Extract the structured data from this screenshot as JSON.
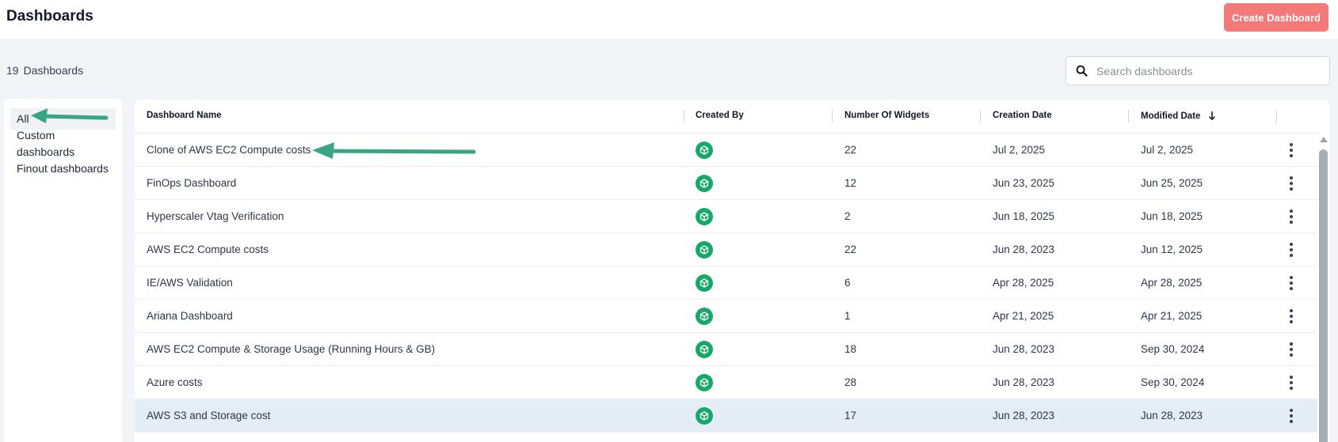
{
  "header": {
    "title": "Dashboards",
    "create_button": "Create Dashboard"
  },
  "summary": {
    "count": "19",
    "label": "Dashboards"
  },
  "search": {
    "placeholder": "Search dashboards",
    "value": ""
  },
  "sidebar": {
    "items": [
      {
        "label": "All",
        "active": true
      },
      {
        "label": "Custom dashboards",
        "active": false
      },
      {
        "label": "Finout dashboards",
        "active": false
      }
    ]
  },
  "table": {
    "columns": {
      "name": "Dashboard Name",
      "created_by": "Created By",
      "widgets": "Number Of Widgets",
      "creation_date": "Creation Date",
      "modified_date": "Modified Date"
    },
    "sort": {
      "column": "Modified Date",
      "direction": "descending",
      "icon": "arrow-down-icon"
    },
    "rows": [
      {
        "name": "Clone of AWS EC2 Compute costs",
        "widgets": "22",
        "created": "Jul 2, 2025",
        "modified": "Jul 2, 2025"
      },
      {
        "name": "FinOps Dashboard",
        "widgets": "12",
        "created": "Jun 23, 2025",
        "modified": "Jun 25, 2025"
      },
      {
        "name": "Hyperscaler Vtag Verification",
        "widgets": "2",
        "created": "Jun 18, 2025",
        "modified": "Jun 18, 2025"
      },
      {
        "name": "AWS EC2 Compute costs",
        "widgets": "22",
        "created": "Jun 28, 2023",
        "modified": "Jun 12, 2025"
      },
      {
        "name": "IE/AWS Validation",
        "widgets": "6",
        "created": "Apr 28, 2025",
        "modified": "Apr 28, 2025"
      },
      {
        "name": "Ariana Dashboard",
        "widgets": "1",
        "created": "Apr 21, 2025",
        "modified": "Apr 21, 2025"
      },
      {
        "name": "AWS EC2 Compute & Storage Usage (Running Hours & GB)",
        "widgets": "18",
        "created": "Jun 28, 2023",
        "modified": "Sep 30, 2024"
      },
      {
        "name": "Azure costs",
        "widgets": "28",
        "created": "Jun 28, 2023",
        "modified": "Sep 30, 2024"
      },
      {
        "name": "AWS S3 and Storage cost",
        "widgets": "17",
        "created": "Jun 28, 2023",
        "modified": "Jun 28, 2023",
        "selected": true
      }
    ],
    "creator_icon": "cube-avatar-icon",
    "row_action_icon": "kebab-menu-icon"
  },
  "colors": {
    "accent_button": "#f47a7a",
    "creator_badge": "#16a869",
    "annotation_arrow": "#3aa585",
    "selected_row": "#e4ecf6"
  }
}
